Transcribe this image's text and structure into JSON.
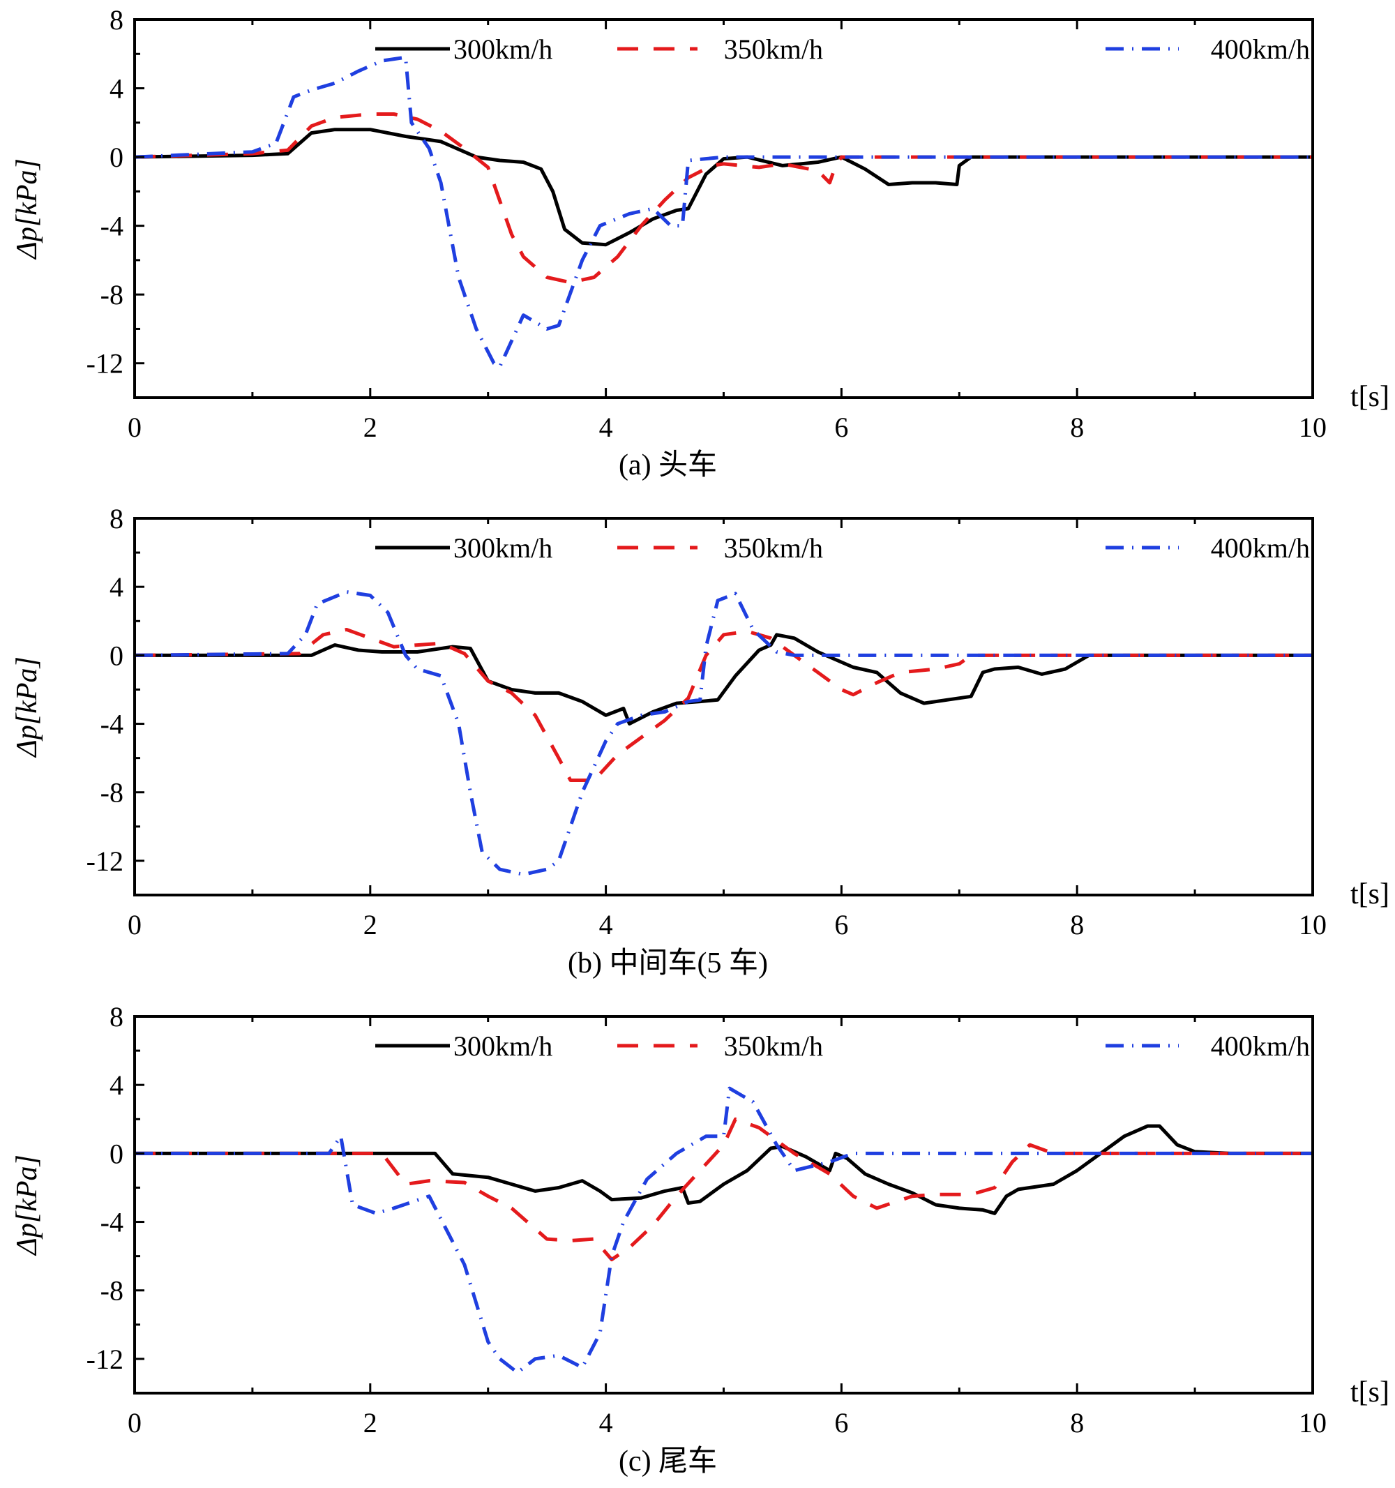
{
  "chart_data": [
    {
      "type": "line",
      "caption": "(a)  头车",
      "xlabel": "t[s]",
      "ylabel": "Δp[kPa]",
      "xlim": [
        0,
        10
      ],
      "ylim": [
        -14,
        8
      ],
      "xticks": [
        0,
        2,
        4,
        6,
        8,
        10
      ],
      "yticks": [
        8,
        4,
        0,
        -4,
        -8,
        -12
      ],
      "legend_position": "top",
      "series": [
        {
          "name": "300km/h",
          "color": "#000000",
          "style": "solid",
          "x": [
            0,
            1.0,
            1.3,
            1.5,
            1.7,
            2.0,
            2.3,
            2.6,
            2.9,
            3.1,
            3.3,
            3.45,
            3.55,
            3.65,
            3.8,
            4.0,
            4.2,
            4.4,
            4.6,
            4.7,
            4.85,
            5.0,
            5.2,
            5.5,
            5.8,
            6.0,
            6.2,
            6.4,
            6.6,
            6.8,
            6.98,
            7.0,
            7.1,
            10
          ],
          "y": [
            0,
            0.1,
            0.2,
            1.4,
            1.6,
            1.6,
            1.2,
            0.9,
            0.0,
            -0.2,
            -0.3,
            -0.7,
            -2.0,
            -4.2,
            -5.0,
            -5.1,
            -4.4,
            -3.6,
            -3.1,
            -3.0,
            -1.0,
            -0.1,
            0.0,
            -0.5,
            -0.3,
            0.0,
            -0.7,
            -1.6,
            -1.5,
            -1.5,
            -1.6,
            -0.5,
            0.0,
            0
          ]
        },
        {
          "name": "350km/h",
          "color": "#e41a1c",
          "style": "dash",
          "x": [
            0,
            1.0,
            1.3,
            1.5,
            1.7,
            2.0,
            2.2,
            2.4,
            2.6,
            2.8,
            3.0,
            3.2,
            3.3,
            3.5,
            3.7,
            3.9,
            4.1,
            4.3,
            4.5,
            4.7,
            4.9,
            5.0,
            5.3,
            5.5,
            5.8,
            5.9,
            5.95,
            6.0,
            10
          ],
          "y": [
            0,
            0.2,
            0.4,
            1.8,
            2.3,
            2.5,
            2.5,
            2.2,
            1.5,
            0.5,
            -0.6,
            -4.5,
            -5.8,
            -7.0,
            -7.3,
            -7.0,
            -5.8,
            -4.0,
            -2.5,
            -1.2,
            -0.5,
            -0.4,
            -0.6,
            -0.4,
            -0.8,
            -1.5,
            -0.5,
            0.0,
            0
          ]
        },
        {
          "name": "400km/h",
          "color": "#1f3fe0",
          "style": "dashdot",
          "x": [
            0,
            1.0,
            1.2,
            1.35,
            1.5,
            1.7,
            1.9,
            2.1,
            2.3,
            2.35,
            2.5,
            2.6,
            2.75,
            2.9,
            3.05,
            3.1,
            3.3,
            3.5,
            3.6,
            3.8,
            3.95,
            4.2,
            4.4,
            4.55,
            4.65,
            4.7,
            5.0,
            10
          ],
          "y": [
            0,
            0.3,
            0.8,
            3.5,
            3.9,
            4.3,
            5.0,
            5.6,
            5.8,
            2.0,
            0.5,
            -1.5,
            -7.0,
            -10.0,
            -12.0,
            -12.2,
            -9.2,
            -10.0,
            -9.8,
            -6.0,
            -4.0,
            -3.3,
            -3.0,
            -4.0,
            -4.0,
            -0.2,
            0.0,
            0
          ]
        }
      ]
    },
    {
      "type": "line",
      "caption": "(b)  中间车(5 车)",
      "xlabel": "t[s]",
      "ylabel": "Δp[kPa]",
      "xlim": [
        0,
        10
      ],
      "ylim": [
        -14,
        8
      ],
      "xticks": [
        0,
        2,
        4,
        6,
        8,
        10
      ],
      "yticks": [
        8,
        4,
        0,
        -4,
        -8,
        -12
      ],
      "legend_position": "top",
      "series": [
        {
          "name": "300km/h",
          "color": "#000000",
          "style": "solid",
          "x": [
            0,
            1.5,
            1.6,
            1.7,
            1.9,
            2.1,
            2.4,
            2.7,
            2.85,
            3.0,
            3.2,
            3.4,
            3.6,
            3.8,
            4.0,
            4.15,
            4.2,
            4.4,
            4.6,
            4.8,
            4.95,
            5.1,
            5.3,
            5.4,
            5.45,
            5.6,
            5.8,
            6.1,
            6.3,
            6.5,
            6.7,
            6.9,
            7.1,
            7.2,
            7.3,
            7.5,
            7.7,
            7.9,
            8.1,
            10
          ],
          "y": [
            0,
            0,
            0.3,
            0.6,
            0.3,
            0.2,
            0.2,
            0.5,
            0.4,
            -1.5,
            -2.0,
            -2.2,
            -2.2,
            -2.7,
            -3.5,
            -3.1,
            -4.0,
            -3.3,
            -2.8,
            -2.7,
            -2.6,
            -1.2,
            0.3,
            0.6,
            1.2,
            1.0,
            0.2,
            -0.7,
            -1.0,
            -2.2,
            -2.8,
            -2.6,
            -2.4,
            -1.0,
            -0.8,
            -0.7,
            -1.1,
            -0.8,
            0.0,
            0
          ]
        },
        {
          "name": "350km/h",
          "color": "#e41a1c",
          "style": "dash",
          "x": [
            0,
            1.4,
            1.6,
            1.8,
            2.0,
            2.2,
            2.4,
            2.6,
            2.8,
            3.0,
            3.2,
            3.4,
            3.6,
            3.7,
            3.9,
            4.1,
            4.3,
            4.5,
            4.7,
            4.85,
            5.0,
            5.2,
            5.4,
            5.6,
            5.8,
            6.0,
            6.1,
            6.3,
            6.5,
            6.8,
            7.0,
            7.1,
            10
          ],
          "y": [
            0,
            0.1,
            1.2,
            1.5,
            1.0,
            0.5,
            0.6,
            0.7,
            0.1,
            -1.5,
            -2.2,
            -3.5,
            -6.0,
            -7.3,
            -7.3,
            -5.8,
            -4.8,
            -3.8,
            -2.5,
            0.0,
            1.2,
            1.4,
            1.0,
            0.0,
            -1.0,
            -2.0,
            -2.3,
            -1.6,
            -1.0,
            -0.8,
            -0.5,
            0.0,
            0
          ]
        },
        {
          "name": "400km/h",
          "color": "#1f3fe0",
          "style": "dashdot",
          "x": [
            0,
            1.3,
            1.45,
            1.55,
            1.8,
            2.0,
            2.15,
            2.3,
            2.4,
            2.6,
            2.75,
            2.85,
            2.95,
            3.1,
            3.3,
            3.5,
            3.6,
            3.8,
            4.0,
            4.1,
            4.3,
            4.5,
            4.7,
            4.8,
            4.85,
            4.95,
            5.1,
            5.25,
            5.45,
            5.6,
            10
          ],
          "y": [
            0,
            0.1,
            1.2,
            3.0,
            3.7,
            3.5,
            2.5,
            0.0,
            -0.8,
            -1.2,
            -4.0,
            -8.0,
            -11.5,
            -12.5,
            -12.8,
            -12.5,
            -12.0,
            -8.0,
            -5.0,
            -4.0,
            -3.5,
            -3.3,
            -2.7,
            -2.6,
            0.5,
            3.2,
            3.6,
            1.5,
            0.2,
            0.0,
            0
          ]
        }
      ]
    },
    {
      "type": "line",
      "caption": "(c)  尾车",
      "xlabel": "t[s]",
      "ylabel": "Δp[kPa]",
      "xlim": [
        0,
        10
      ],
      "ylim": [
        -14,
        8
      ],
      "xticks": [
        0,
        2,
        4,
        6,
        8,
        10
      ],
      "yticks": [
        8,
        4,
        0,
        -4,
        -8,
        -12
      ],
      "legend_position": "top",
      "series": [
        {
          "name": "300km/h",
          "color": "#000000",
          "style": "solid",
          "x": [
            0,
            2.55,
            2.7,
            3.0,
            3.2,
            3.4,
            3.6,
            3.8,
            3.95,
            4.05,
            4.3,
            4.5,
            4.65,
            4.7,
            4.8,
            5.0,
            5.2,
            5.4,
            5.5,
            5.7,
            5.9,
            5.95,
            6.05,
            6.2,
            6.4,
            6.6,
            6.8,
            7.0,
            7.2,
            7.3,
            7.4,
            7.5,
            7.8,
            8.0,
            8.2,
            8.4,
            8.6,
            8.7,
            8.85,
            9.0,
            9.3,
            10
          ],
          "y": [
            0,
            0,
            -1.2,
            -1.4,
            -1.8,
            -2.2,
            -2.0,
            -1.6,
            -2.2,
            -2.7,
            -2.6,
            -2.2,
            -2.0,
            -2.9,
            -2.8,
            -1.8,
            -1.0,
            0.3,
            0.4,
            -0.2,
            -1.0,
            0.0,
            -0.3,
            -1.2,
            -1.8,
            -2.3,
            -3.0,
            -3.2,
            -3.3,
            -3.5,
            -2.5,
            -2.1,
            -1.8,
            -1.0,
            0.0,
            1.0,
            1.6,
            1.6,
            0.5,
            0.1,
            0.0,
            0
          ]
        },
        {
          "name": "350km/h",
          "color": "#e41a1c",
          "style": "dash",
          "x": [
            0,
            2.1,
            2.3,
            2.5,
            2.8,
            3.0,
            3.2,
            3.5,
            3.7,
            3.9,
            4.05,
            4.2,
            4.4,
            4.6,
            4.8,
            5.0,
            5.1,
            5.3,
            5.6,
            5.9,
            6.1,
            6.3,
            6.6,
            6.8,
            7.1,
            7.3,
            7.45,
            7.6,
            7.8,
            10
          ],
          "y": [
            0,
            0,
            -1.8,
            -1.6,
            -1.7,
            -2.5,
            -3.2,
            -5.0,
            -5.1,
            -5.0,
            -6.2,
            -5.5,
            -4.2,
            -2.5,
            -1.0,
            0.5,
            2.0,
            1.5,
            0.0,
            -1.2,
            -2.5,
            -3.2,
            -2.5,
            -2.4,
            -2.4,
            -2.0,
            -0.5,
            0.5,
            0.0,
            0
          ]
        },
        {
          "name": "400km/h",
          "color": "#1f3fe0",
          "style": "dashdot",
          "x": [
            0,
            1.65,
            1.75,
            1.85,
            2.05,
            2.2,
            2.5,
            2.8,
            3.0,
            3.1,
            3.25,
            3.4,
            3.6,
            3.8,
            3.95,
            4.05,
            4.15,
            4.35,
            4.6,
            4.85,
            5.0,
            5.05,
            5.25,
            5.45,
            5.6,
            5.9,
            6.1,
            6.25,
            10
          ],
          "y": [
            0,
            0.0,
            1.0,
            -3.0,
            -3.5,
            -3.2,
            -2.5,
            -6.5,
            -11.0,
            -12.0,
            -12.8,
            -12.0,
            -11.8,
            -12.5,
            -10.5,
            -6.0,
            -4.0,
            -1.5,
            0.0,
            1.0,
            1.0,
            3.8,
            3.0,
            0.5,
            -1.0,
            -0.5,
            0.0,
            0.0,
            0
          ]
        }
      ]
    }
  ]
}
